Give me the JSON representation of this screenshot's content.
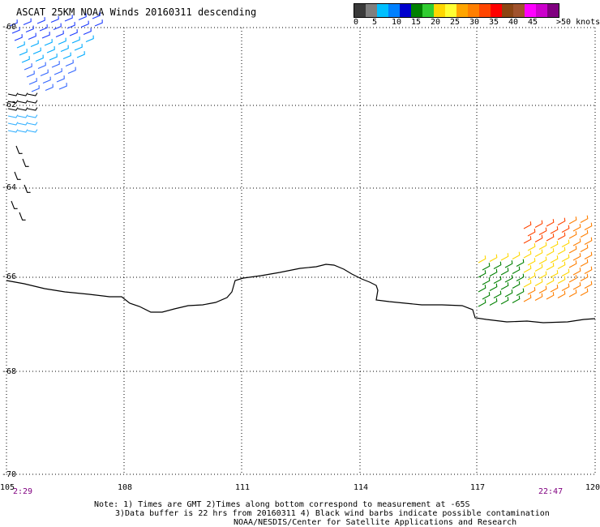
{
  "title": "ASCAT 25KM NOAA Winds 20160311 descending",
  "legend": {
    "labels": [
      "0",
      "5",
      "10",
      "15",
      "20",
      "25",
      "30",
      "35",
      "40",
      "45",
      ">50 knots"
    ],
    "colors": [
      "#3a3a3a",
      "#7f7f7f",
      "#00bfff",
      "#0080ff",
      "#0000cd",
      "#008000",
      "#32cd32",
      "#ffd700",
      "#ffff33",
      "#ffa500",
      "#ff7f00",
      "#ff4500",
      "#ff0000",
      "#8b4513",
      "#a0522d",
      "#ff00ff",
      "#cc00cc",
      "#800080"
    ]
  },
  "lat_labels": [
    "-60",
    "-62",
    "-64",
    "-66",
    "-68",
    "-70"
  ],
  "lon_labels": [
    "105",
    "108",
    "111",
    "114",
    "117",
    "120"
  ],
  "times": {
    "start": "2:29",
    "end": "22:47"
  },
  "notes": {
    "line1": "Note: 1) Times are GMT 2)Times along bottom correspond to measurement at -65S",
    "line2": "3)Data buffer is 22 hrs from 20160311 4) Black wind barbs indicate possible contamination",
    "line3": "NOAA/NESDIS/Center for Satellite Applications and Research"
  }
}
